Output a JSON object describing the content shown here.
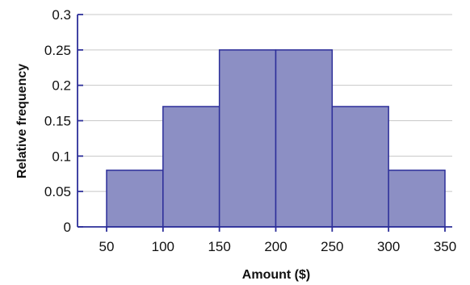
{
  "chart_data": {
    "type": "bar",
    "subtype": "histogram",
    "bin_edges": [
      50,
      100,
      150,
      200,
      250,
      300,
      350
    ],
    "values": [
      0.08,
      0.17,
      0.25,
      0.25,
      0.17,
      0.08
    ],
    "xlabel": "Amount ($)",
    "ylabel": "Relative frequency",
    "xlim": [
      50,
      350
    ],
    "ylim": [
      0,
      0.3
    ],
    "x_ticks": [
      50,
      100,
      150,
      200,
      250,
      300,
      350
    ],
    "x_tick_labels": [
      "50",
      "100",
      "150",
      "200",
      "250",
      "300",
      "350"
    ],
    "y_ticks": [
      0,
      0.05,
      0.1,
      0.15,
      0.2,
      0.25,
      0.3
    ],
    "y_tick_labels": [
      "0",
      "0.05",
      "0.1",
      "0.15",
      "0.2",
      "0.25",
      "0.3"
    ],
    "grid": "horizontal",
    "colors": {
      "bar_fill": "#8c8fc4",
      "bar_stroke": "#2d2f9a",
      "axis": "#2d2f9a",
      "grid": "#c8c8c8"
    }
  }
}
